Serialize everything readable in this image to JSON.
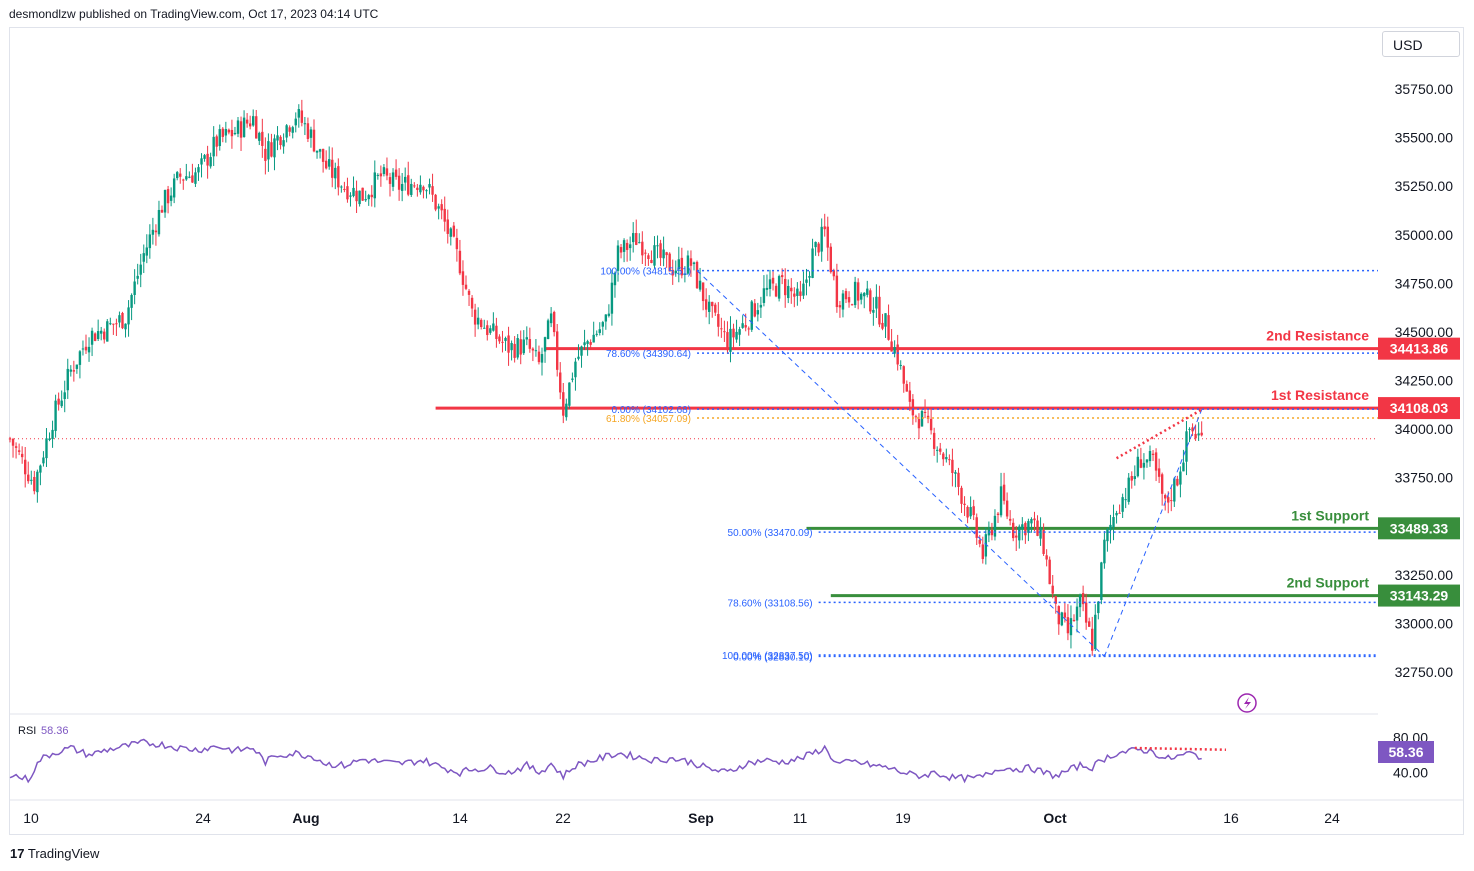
{
  "header": {
    "publisher": "desmondlzw published on TradingView.com, Oct 17, 2023 04:14 UTC"
  },
  "currency": "USD",
  "footer": {
    "brand_mark": "17",
    "brand": "TradingView"
  },
  "colors": {
    "up": "#089981",
    "down": "#f23645",
    "resistance": "#f23645",
    "support": "#388e3c",
    "fib": "#2962ff",
    "fib_gold": "#f5a623",
    "rsi": "#7e57c2"
  },
  "chart_data": {
    "type": "candlestick",
    "symbol_currency": "USD",
    "price_axis": {
      "min": 32600,
      "max": 35900,
      "ticks": [
        35750,
        35500,
        35250,
        35000,
        34750,
        34500,
        34250,
        34000,
        33750,
        33500,
        33250,
        33000,
        32750
      ],
      "tick_labels": [
        "35750.00",
        "35500.00",
        "35250.00",
        "35000.00",
        "34750.00",
        "34500.00",
        "34250.00",
        "34000.00",
        "33750.00",
        "33500.00",
        "33250.00",
        "33000.00",
        "32750.00"
      ]
    },
    "time_axis": {
      "labels": [
        "10",
        "24",
        "Aug",
        "14",
        "22",
        "Sep",
        "11",
        "19",
        "Oct",
        "16",
        "24"
      ]
    },
    "close_path": [
      [
        0,
        33950
      ],
      [
        8,
        33720
      ],
      [
        14,
        34050
      ],
      [
        20,
        34300
      ],
      [
        26,
        34480
      ],
      [
        32,
        34520
      ],
      [
        38,
        34580
      ],
      [
        44,
        34900
      ],
      [
        50,
        35150
      ],
      [
        56,
        35300
      ],
      [
        62,
        35320
      ],
      [
        68,
        35480
      ],
      [
        74,
        35530
      ],
      [
        80,
        35600
      ],
      [
        84,
        35420
      ],
      [
        88,
        35500
      ],
      [
        94,
        35620
      ],
      [
        98,
        35540
      ],
      [
        104,
        35350
      ],
      [
        110,
        35250
      ],
      [
        116,
        35200
      ],
      [
        122,
        35300
      ],
      [
        128,
        35250
      ],
      [
        136,
        35280
      ],
      [
        142,
        35100
      ],
      [
        148,
        34850
      ],
      [
        152,
        34600
      ],
      [
        158,
        34500
      ],
      [
        164,
        34420
      ],
      [
        170,
        34430
      ],
      [
        174,
        34330
      ],
      [
        178,
        34560
      ],
      [
        182,
        34100
      ],
      [
        186,
        34350
      ],
      [
        190,
        34450
      ],
      [
        196,
        34550
      ],
      [
        200,
        34900
      ],
      [
        206,
        34980
      ],
      [
        212,
        34900
      ],
      [
        218,
        34830
      ],
      [
        224,
        34850
      ],
      [
        230,
        34600
      ],
      [
        236,
        34450
      ],
      [
        242,
        34550
      ],
      [
        248,
        34700
      ],
      [
        254,
        34750
      ],
      [
        260,
        34650
      ],
      [
        264,
        34900
      ],
      [
        268,
        35010
      ],
      [
        272,
        34680
      ],
      [
        278,
        34700
      ],
      [
        284,
        34650
      ],
      [
        288,
        34540
      ],
      [
        292,
        34370
      ],
      [
        296,
        34100
      ],
      [
        300,
        34050
      ],
      [
        304,
        33950
      ],
      [
        310,
        33780
      ],
      [
        316,
        33550
      ],
      [
        320,
        33350
      ],
      [
        326,
        33650
      ],
      [
        330,
        33480
      ],
      [
        336,
        33520
      ],
      [
        340,
        33400
      ],
      [
        344,
        33050
      ],
      [
        348,
        32950
      ],
      [
        352,
        33100
      ],
      [
        356,
        32900
      ],
      [
        360,
        33400
      ],
      [
        364,
        33600
      ],
      [
        368,
        33700
      ],
      [
        372,
        33850
      ],
      [
        376,
        33820
      ],
      [
        380,
        33600
      ],
      [
        384,
        33750
      ],
      [
        388,
        34000
      ],
      [
        392,
        33950
      ]
    ],
    "horizontal_levels": [
      {
        "label": "2nd Resistance",
        "value": "34413.86",
        "kind": "resistance",
        "price": 34413.86,
        "x_start": 176
      },
      {
        "label": "1st Resistance",
        "value": "34108.03",
        "kind": "resistance",
        "price": 34108.03,
        "x_start": 140
      },
      {
        "label": "1st Support",
        "value": "33489.33",
        "kind": "support",
        "price": 33489.33,
        "x_start": 262
      },
      {
        "label": "2nd Support",
        "value": "33143.29",
        "kind": "support",
        "price": 33143.29,
        "x_start": 270
      }
    ],
    "last_price_line": 33950,
    "fib_sets": [
      {
        "name": "retracement-1",
        "x_start": 226,
        "x_end": 360,
        "levels": [
          {
            "label": "100.00% (34815.51)",
            "price": 34815.51
          },
          {
            "label": "78.60% (34390.64)",
            "price": 34390.64
          },
          {
            "label": "61.80% (34057.09)",
            "price": 34057.09,
            "gold": true
          },
          {
            "label": "0.00% (34102.68)",
            "price": 34102.68
          }
        ]
      },
      {
        "name": "retracement-2",
        "x_start": 266,
        "x_end": 360,
        "levels": [
          {
            "label": "50.00% (33470.09)",
            "price": 33470.09
          },
          {
            "label": "78.60% (33108.56)",
            "price": 33108.56
          },
          {
            "label": "100.00% (32837.50)",
            "price": 32837.5
          },
          {
            "label": "0.00% (32830.10)",
            "price": 32830.1
          }
        ]
      }
    ],
    "rsi": {
      "label": "RSI",
      "value": "58.36",
      "axis_labels": [
        "80.00",
        "40.00"
      ],
      "ymin": 20,
      "ymax": 100,
      "path": [
        [
          0,
          38
        ],
        [
          6,
          32
        ],
        [
          10,
          55
        ],
        [
          14,
          62
        ],
        [
          20,
          68
        ],
        [
          26,
          60
        ],
        [
          32,
          66
        ],
        [
          38,
          70
        ],
        [
          44,
          74
        ],
        [
          50,
          72
        ],
        [
          56,
          68
        ],
        [
          62,
          66
        ],
        [
          68,
          70
        ],
        [
          74,
          65
        ],
        [
          80,
          68
        ],
        [
          84,
          52
        ],
        [
          88,
          60
        ],
        [
          94,
          62
        ],
        [
          100,
          58
        ],
        [
          104,
          50
        ],
        [
          110,
          48
        ],
        [
          116,
          55
        ],
        [
          122,
          52
        ],
        [
          128,
          50
        ],
        [
          136,
          54
        ],
        [
          142,
          46
        ],
        [
          148,
          40
        ],
        [
          152,
          44
        ],
        [
          158,
          45
        ],
        [
          164,
          40
        ],
        [
          170,
          48
        ],
        [
          174,
          40
        ],
        [
          178,
          50
        ],
        [
          182,
          36
        ],
        [
          186,
          48
        ],
        [
          190,
          52
        ],
        [
          196,
          58
        ],
        [
          200,
          62
        ],
        [
          206,
          58
        ],
        [
          212,
          54
        ],
        [
          218,
          56
        ],
        [
          224,
          52
        ],
        [
          230,
          44
        ],
        [
          236,
          40
        ],
        [
          242,
          50
        ],
        [
          248,
          54
        ],
        [
          254,
          52
        ],
        [
          260,
          56
        ],
        [
          264,
          62
        ],
        [
          268,
          68
        ],
        [
          272,
          50
        ],
        [
          278,
          52
        ],
        [
          284,
          48
        ],
        [
          288,
          46
        ],
        [
          292,
          42
        ],
        [
          296,
          38
        ],
        [
          300,
          36
        ],
        [
          304,
          40
        ],
        [
          310,
          34
        ],
        [
          316,
          33
        ],
        [
          320,
          35
        ],
        [
          326,
          46
        ],
        [
          330,
          44
        ],
        [
          336,
          45
        ],
        [
          340,
          40
        ],
        [
          344,
          36
        ],
        [
          348,
          42
        ],
        [
          352,
          48
        ],
        [
          356,
          46
        ],
        [
          360,
          56
        ],
        [
          364,
          62
        ],
        [
          368,
          64
        ],
        [
          372,
          66
        ],
        [
          376,
          64
        ],
        [
          380,
          55
        ],
        [
          384,
          58
        ],
        [
          388,
          62
        ],
        [
          392,
          58
        ]
      ]
    }
  }
}
